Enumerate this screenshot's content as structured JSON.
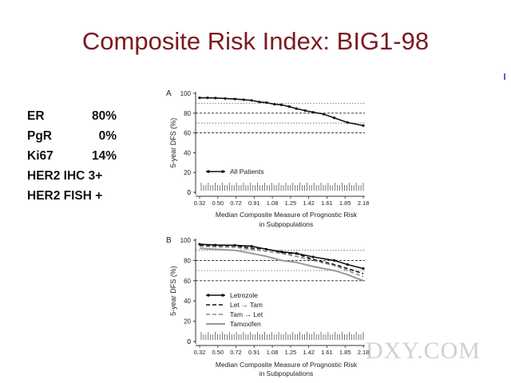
{
  "slide": {
    "title": "Composite Risk Index: BIG1-98",
    "watermark": "DXY.COM"
  },
  "patient": {
    "rows": [
      {
        "label": "ER",
        "value": "80%"
      },
      {
        "label": "PgR",
        "value": "0%"
      },
      {
        "label": "Ki67",
        "value": "14%"
      }
    ],
    "lines": [
      "HER2 IHC 3+",
      "HER2 FISH +"
    ]
  },
  "chart_data": [
    {
      "panel": "A",
      "type": "line",
      "ylabel": "5-year DFS (%)",
      "xlabel": [
        "Median Composite Measure of Prognostic Risk",
        "in Subpopulations"
      ],
      "ylim": [
        0,
        100
      ],
      "yticks": [
        0,
        20,
        40,
        60,
        80,
        100
      ],
      "xlim": [
        0.32,
        2.18
      ],
      "xticks": [
        "0.32",
        "0.50",
        "0.72",
        "0.91",
        "1.08",
        "1.25",
        "1.42",
        "1.61",
        "1.85",
        "2.18"
      ],
      "dotted_refs": [
        90,
        70
      ],
      "dashed_refs": [
        80,
        60
      ],
      "legend": "bottom-left",
      "series": [
        {
          "name": "All Patients",
          "color": "#111111",
          "style": "solid-markers",
          "x": [
            0.32,
            0.41,
            0.5,
            0.61,
            0.72,
            0.82,
            0.91,
            1.0,
            1.08,
            1.17,
            1.25,
            1.34,
            1.42,
            1.52,
            1.61,
            1.73,
            1.85,
            2.0,
            2.18
          ],
          "y": [
            95.5,
            95.5,
            95.3,
            94.8,
            94.3,
            93.6,
            92.9,
            91.3,
            90.6,
            89.0,
            88.4,
            86.6,
            84.6,
            82.6,
            80.9,
            79.0,
            75.2,
            70.6,
            67.4
          ]
        }
      ]
    },
    {
      "panel": "B",
      "type": "line",
      "ylabel": "5-year DFS (%)",
      "xlabel": [
        "Median Composite Measure of Prognostic Risk",
        "in Subpopulations"
      ],
      "ylim": [
        0,
        100
      ],
      "yticks": [
        0,
        20,
        40,
        60,
        80,
        100
      ],
      "xlim": [
        0.32,
        2.18
      ],
      "xticks": [
        "0.32",
        "0.50",
        "0.72",
        "0.91",
        "1.08",
        "1.25",
        "1.42",
        "1.61",
        "1.85",
        "2.18"
      ],
      "dotted_refs": [
        90,
        70
      ],
      "dashed_refs": [
        80,
        60
      ],
      "legend": "bottom-left",
      "series": [
        {
          "name": "Letrozole",
          "color": "#111111",
          "style": "solid-markers",
          "x": [
            0.32,
            0.5,
            0.72,
            0.91,
            1.08,
            1.25,
            1.42,
            1.61,
            1.85,
            2.0,
            2.18
          ],
          "y": [
            96,
            95.2,
            95,
            94,
            91,
            88.5,
            87,
            83.5,
            80,
            76,
            72
          ]
        },
        {
          "name": "Let → Tam",
          "color": "#111111",
          "style": "dashed",
          "x": [
            0.32,
            0.5,
            0.72,
            0.91,
            1.08,
            1.25,
            1.42,
            1.61,
            1.85,
            2.0,
            2.18
          ],
          "y": [
            95,
            94.5,
            94.5,
            92,
            91.5,
            87.5,
            86.5,
            81,
            76,
            72,
            67
          ]
        },
        {
          "name": "Tam → Let",
          "color": "#8a8a8a",
          "style": "dashed",
          "x": [
            0.32,
            0.5,
            0.72,
            0.91,
            1.08,
            1.25,
            1.42,
            1.61,
            1.85,
            2.0,
            2.18
          ],
          "y": [
            94,
            93.5,
            93,
            91,
            89,
            87,
            84,
            80,
            75,
            70,
            64
          ]
        },
        {
          "name": "Tamoxifen",
          "color": "#9a9a9a",
          "style": "solid",
          "x": [
            0.32,
            0.5,
            0.72,
            0.91,
            1.08,
            1.25,
            1.42,
            1.61,
            1.85,
            2.0,
            2.18
          ],
          "y": [
            92,
            91,
            90,
            87,
            84,
            80,
            78,
            74,
            70,
            66,
            60
          ]
        }
      ]
    }
  ]
}
